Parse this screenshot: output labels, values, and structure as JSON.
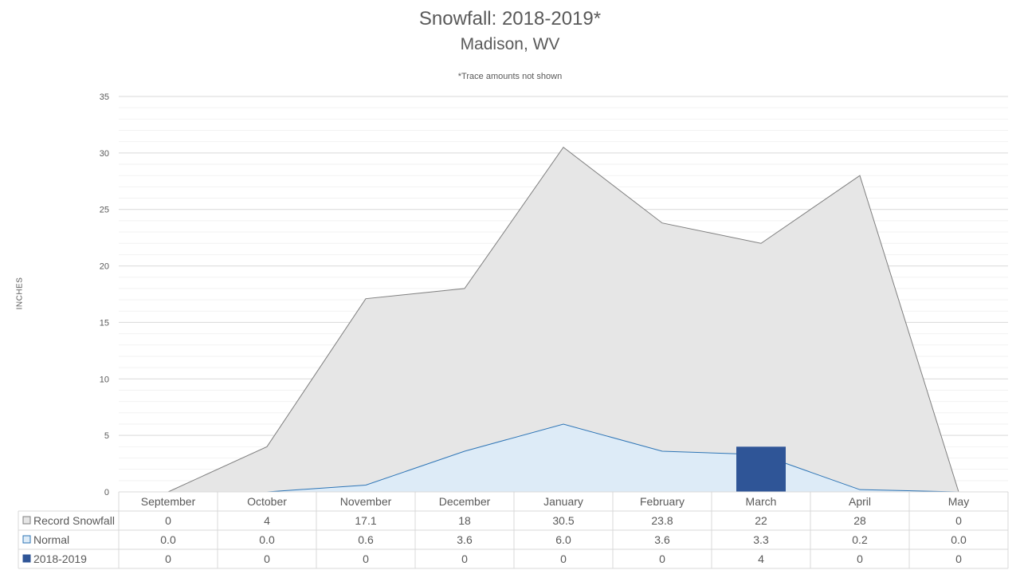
{
  "chart_data": {
    "type": "area",
    "title": "Snowfall: 2018-2019*",
    "subtitle": "Madison, WV",
    "note": "*Trace amounts not shown",
    "ylabel": "INCHES",
    "ylim": [
      0,
      35
    ],
    "yticks": [
      0,
      5,
      10,
      15,
      20,
      25,
      30,
      35
    ],
    "grid": true,
    "legend": "data-table",
    "categories": [
      "September",
      "October",
      "November",
      "December",
      "January",
      "February",
      "March",
      "April",
      "May"
    ],
    "series": [
      {
        "name": "Record Snowfall",
        "kind": "area",
        "color": "#E6E6E6",
        "line": "#7F7F7F",
        "values": [
          0,
          4,
          17.1,
          18,
          30.5,
          23.8,
          22,
          28,
          0
        ],
        "labels": [
          "0",
          "4",
          "17.1",
          "18",
          "30.5",
          "23.8",
          "22",
          "28",
          "0"
        ]
      },
      {
        "name": "Normal",
        "kind": "area",
        "color": "#DDEBF7",
        "line": "#2E75B6",
        "values": [
          0.0,
          0.0,
          0.6,
          3.6,
          6.0,
          3.6,
          3.3,
          0.2,
          0.0
        ],
        "labels": [
          "0.0",
          "0.0",
          "0.6",
          "3.6",
          "6.0",
          "3.6",
          "3.3",
          "0.2",
          "0.0"
        ]
      },
      {
        "name": "2018-2019",
        "kind": "bar",
        "color": "#2F5597",
        "values": [
          0,
          0,
          0,
          0,
          0,
          0,
          4,
          0,
          0
        ],
        "labels": [
          "0",
          "0",
          "0",
          "0",
          "0",
          "0",
          "4",
          "0",
          "0"
        ]
      }
    ]
  }
}
